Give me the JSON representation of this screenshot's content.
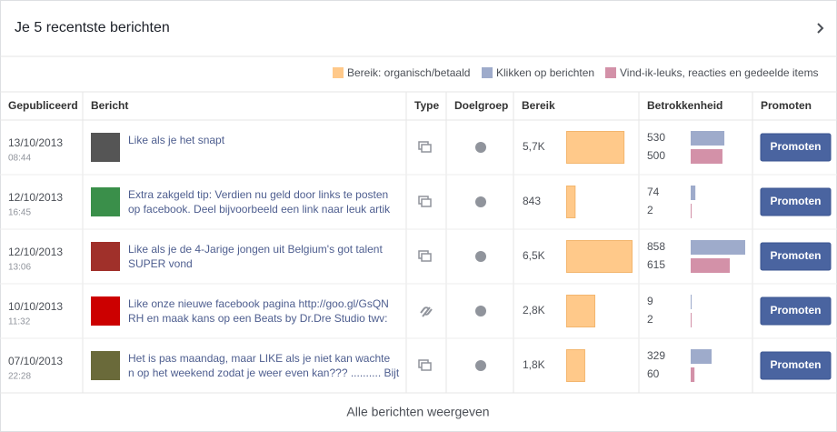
{
  "header": {
    "title": "Je 5 recentste berichten"
  },
  "legend": [
    {
      "label": "Bereik: organisch/betaald",
      "color": "#ffc98a"
    },
    {
      "label": "Klikken op berichten",
      "color": "#9eabcb"
    },
    {
      "label": "Vind-ik-leuks, reacties en gedeelde items",
      "color": "#d391a8"
    }
  ],
  "table": {
    "columns": [
      "Gepubliceerd",
      "Bericht",
      "Type",
      "Doelgroep",
      "Bereik",
      "Betrokkenheid",
      "Promoten"
    ],
    "rows": [
      {
        "date": "13/10/2013",
        "time": "08:44",
        "message": [
          "Like als je het snapt"
        ],
        "type": "photo",
        "reach": {
          "value": 5700,
          "label": "5,7K"
        },
        "clicks": 530,
        "likes": 500,
        "button": "Promoten"
      },
      {
        "date": "12/10/2013",
        "time": "16:45",
        "message": [
          "Extra zakgeld tip: Verdien nu geld door links te posten",
          "op facebook. Deel bijvoorbeeld een link naar leuk artik"
        ],
        "type": "photo",
        "reach": 843,
        "clicks": 74,
        "likes": 2,
        "button": "Promoten"
      },
      {
        "date": "12/10/2013",
        "time": "13:06",
        "message": [
          "Like als je de 4-Jarige jongen uit Belgium's got talent",
          "SUPER vond"
        ],
        "type": "photo",
        "reach": {
          "value": 6500,
          "label": "6,5K"
        },
        "clicks": 858,
        "likes": 615,
        "button": "Promoten"
      },
      {
        "date": "10/10/2013",
        "time": "11:32",
        "message": [
          "Like onze nieuwe facebook pagina http://goo.gl/GsQN",
          "RH en maak kans op een Beats by Dr.Dre Studio twv:"
        ],
        "type": "link",
        "reach": {
          "value": 2800,
          "label": "2,8K"
        },
        "clicks": 9,
        "likes": 2,
        "button": "Promoten"
      },
      {
        "date": "07/10/2013",
        "time": "22:28",
        "message": [
          "Het is pas maandag, maar LIKE als je niet kan wachte",
          "n op het weekend zodat je weer even kan??? .......... Bijt"
        ],
        "type": "photo",
        "reach": {
          "value": 1800,
          "label": "1,8K"
        },
        "clicks": 329,
        "likes": 60,
        "button": "Promoten"
      }
    ]
  },
  "footer": "Alle berichten weergeven"
}
